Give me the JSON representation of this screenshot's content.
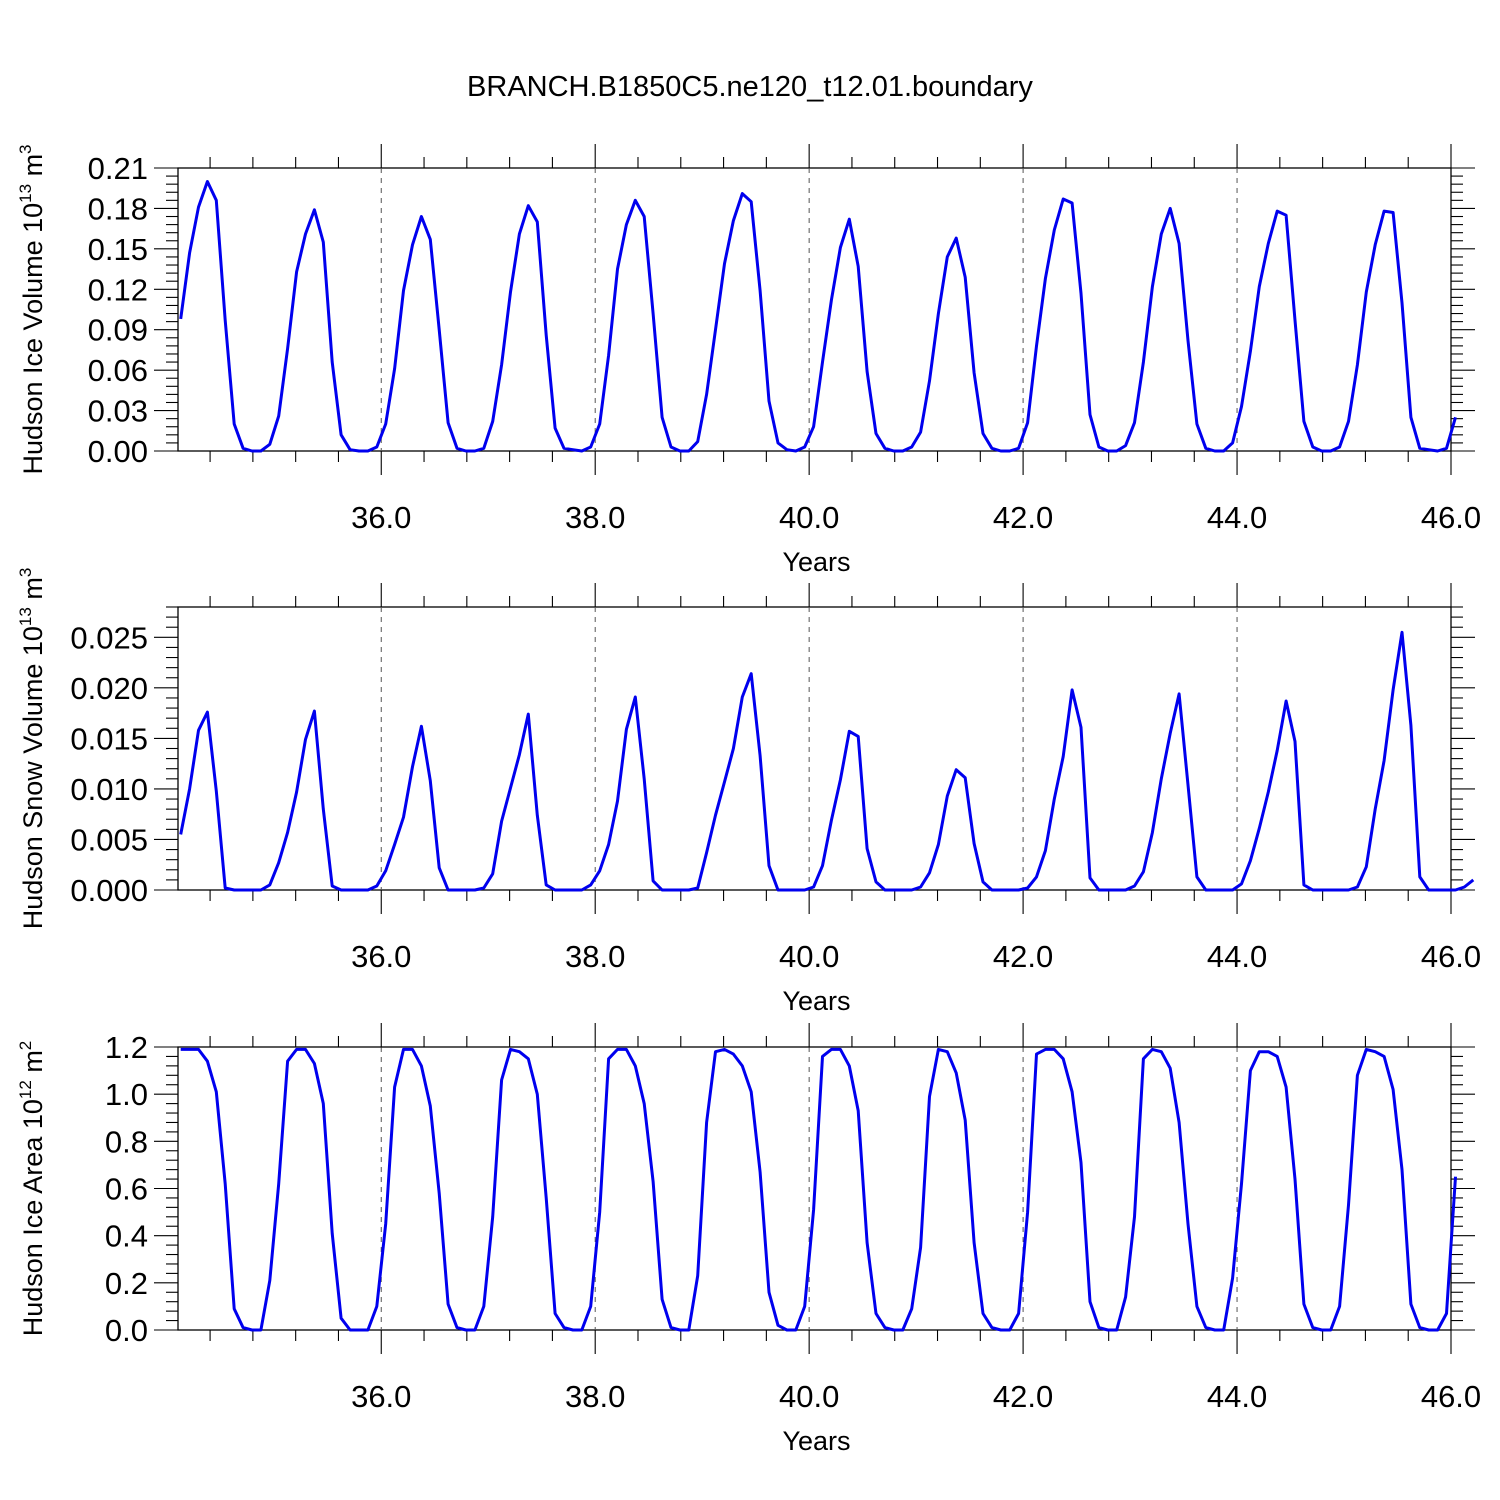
{
  "title": "BRANCH.B1850C5.ne120_t12.01.boundary",
  "line_color": "#0000ee",
  "chart_data": [
    {
      "type": "line",
      "xlabel": "Years",
      "ylabel": "Hudson Ice Volume 10",
      "ylabel_exp": "13",
      "ylabel_unit": " m",
      "ylabel_unit_exp": "3",
      "xlim": [
        34.1,
        46.0
      ],
      "ylim": [
        0.0,
        0.21
      ],
      "ref_line": null,
      "xticks": [
        "36.0",
        "38.0",
        "40.0",
        "42.0",
        "44.0",
        "46.0"
      ],
      "yticks": [
        "0.00",
        "0.03",
        "0.06",
        "0.09",
        "0.12",
        "0.15",
        "0.18",
        "0.21"
      ],
      "series": [
        {
          "x0": 34.125,
          "dx": 0.0833333,
          "values": [
            0.098,
            0.147,
            0.181,
            0.2,
            0.186,
            0.097,
            0.02,
            0.002,
            0.0,
            0.0,
            0.005,
            0.026,
            0.076,
            0.133,
            0.161,
            0.179,
            0.155,
            0.066,
            0.012,
            0.001,
            0.0,
            0.0,
            0.003,
            0.02,
            0.061,
            0.119,
            0.153,
            0.174,
            0.157,
            0.09,
            0.021,
            0.002,
            0.0,
            0.0,
            0.002,
            0.022,
            0.064,
            0.118,
            0.161,
            0.182,
            0.17,
            0.086,
            0.017,
            0.002,
            0.001,
            0.0,
            0.003,
            0.02,
            0.071,
            0.135,
            0.168,
            0.186,
            0.174,
            0.102,
            0.025,
            0.003,
            0.0,
            0.0,
            0.007,
            0.042,
            0.09,
            0.139,
            0.171,
            0.191,
            0.185,
            0.119,
            0.037,
            0.006,
            0.001,
            0.0,
            0.003,
            0.018,
            0.066,
            0.112,
            0.151,
            0.172,
            0.137,
            0.059,
            0.013,
            0.002,
            0.0,
            0.0,
            0.003,
            0.014,
            0.052,
            0.102,
            0.144,
            0.158,
            0.129,
            0.058,
            0.013,
            0.002,
            0.0,
            0.0,
            0.002,
            0.021,
            0.078,
            0.128,
            0.164,
            0.187,
            0.184,
            0.117,
            0.027,
            0.003,
            0.0,
            0.0,
            0.004,
            0.021,
            0.066,
            0.122,
            0.161,
            0.18,
            0.154,
            0.082,
            0.02,
            0.002,
            0.0,
            0.0,
            0.006,
            0.033,
            0.074,
            0.122,
            0.154,
            0.178,
            0.175,
            0.097,
            0.022,
            0.003,
            0.0,
            0.0,
            0.003,
            0.022,
            0.064,
            0.118,
            0.153,
            0.178,
            0.177,
            0.11,
            0.025,
            0.002,
            0.001,
            0.0,
            0.002,
            0.025
          ]
        }
      ]
    },
    {
      "type": "line",
      "xlabel": "Years",
      "ylabel": "Hudson Snow Volume 10",
      "ylabel_exp": "13",
      "ylabel_unit": " m",
      "ylabel_unit_exp": "3",
      "xlim": [
        34.1,
        46.0
      ],
      "ylim": [
        0.0,
        0.028
      ],
      "ref_line": null,
      "xticks": [
        "36.0",
        "38.0",
        "40.0",
        "42.0",
        "44.0",
        "46.0"
      ],
      "yticks": [
        "0.000",
        "0.005",
        "0.010",
        "0.015",
        "0.020",
        "0.025"
      ],
      "series": [
        {
          "x0": 34.125,
          "dx": 0.0833333,
          "values": [
            0.0055,
            0.01,
            0.0158,
            0.0176,
            0.0098,
            0.0002,
            0.0,
            0.0,
            0.0,
            0.0,
            0.0005,
            0.0027,
            0.0057,
            0.0097,
            0.0149,
            0.0177,
            0.008,
            0.0004,
            0.0,
            0.0,
            0.0,
            0.0,
            0.0004,
            0.0019,
            0.0045,
            0.0072,
            0.0122,
            0.0162,
            0.0108,
            0.0022,
            0.0,
            0.0,
            0.0,
            0.0,
            0.0002,
            0.0016,
            0.0068,
            0.0101,
            0.0134,
            0.0174,
            0.0074,
            0.0005,
            0.0,
            0.0,
            0.0,
            0.0,
            0.0005,
            0.0019,
            0.0045,
            0.0088,
            0.0159,
            0.0191,
            0.011,
            0.0009,
            0.0,
            0.0,
            0.0,
            0.0,
            0.0002,
            0.0037,
            0.0074,
            0.0107,
            0.014,
            0.0191,
            0.0214,
            0.0133,
            0.0024,
            0.0,
            0.0,
            0.0,
            0.0,
            0.0003,
            0.0024,
            0.0069,
            0.0109,
            0.0157,
            0.0152,
            0.0041,
            0.0008,
            0.0,
            0.0,
            0.0,
            0.0,
            0.0003,
            0.0017,
            0.0045,
            0.0093,
            0.0119,
            0.0111,
            0.0046,
            0.0008,
            0.0,
            0.0,
            0.0,
            0.0,
            0.0002,
            0.0013,
            0.0039,
            0.009,
            0.0132,
            0.0198,
            0.0161,
            0.0012,
            0.0,
            0.0,
            0.0,
            0.0,
            0.0004,
            0.0018,
            0.0057,
            0.011,
            0.0155,
            0.0194,
            0.0104,
            0.0013,
            0.0,
            0.0,
            0.0,
            0.0,
            0.0006,
            0.0029,
            0.0061,
            0.0097,
            0.0138,
            0.0187,
            0.0147,
            0.0005,
            0.0,
            0.0,
            0.0,
            0.0,
            0.0,
            0.0003,
            0.0023,
            0.008,
            0.0128,
            0.0198,
            0.0255,
            0.0163,
            0.0013,
            0.0,
            0.0,
            0.0,
            0.0,
            0.0003,
            0.001
          ]
        }
      ]
    },
    {
      "type": "line",
      "xlabel": "Years",
      "ylabel": "Hudson Ice Area 10",
      "ylabel_exp": "12",
      "ylabel_unit": " m",
      "ylabel_unit_exp": "2",
      "xlim": [
        34.1,
        46.0
      ],
      "ylim": [
        0.0,
        1.2
      ],
      "ref_line": 1.2,
      "xticks": [
        "36.0",
        "38.0",
        "40.0",
        "42.0",
        "44.0",
        "46.0"
      ],
      "yticks": [
        "0.0",
        "0.2",
        "0.4",
        "0.6",
        "0.8",
        "1.0",
        "1.2"
      ],
      "series": [
        {
          "x0": 34.125,
          "dx": 0.0833333,
          "values": [
            1.19,
            1.19,
            1.19,
            1.14,
            1.01,
            0.62,
            0.09,
            0.01,
            0.0,
            0.0,
            0.21,
            0.62,
            1.14,
            1.19,
            1.19,
            1.13,
            0.96,
            0.41,
            0.05,
            0.0,
            0.0,
            0.0,
            0.1,
            0.45,
            1.03,
            1.19,
            1.19,
            1.12,
            0.95,
            0.58,
            0.11,
            0.01,
            0.0,
            0.0,
            0.1,
            0.48,
            1.06,
            1.19,
            1.18,
            1.15,
            1.0,
            0.56,
            0.07,
            0.01,
            0.0,
            0.0,
            0.1,
            0.5,
            1.15,
            1.19,
            1.19,
            1.12,
            0.96,
            0.63,
            0.13,
            0.01,
            0.0,
            0.0,
            0.23,
            0.88,
            1.18,
            1.19,
            1.17,
            1.12,
            1.01,
            0.67,
            0.16,
            0.02,
            0.0,
            0.0,
            0.1,
            0.51,
            1.16,
            1.19,
            1.19,
            1.12,
            0.93,
            0.37,
            0.07,
            0.01,
            0.0,
            0.0,
            0.09,
            0.35,
            0.99,
            1.19,
            1.18,
            1.09,
            0.89,
            0.37,
            0.07,
            0.01,
            0.0,
            0.0,
            0.07,
            0.5,
            1.17,
            1.19,
            1.19,
            1.15,
            1.01,
            0.71,
            0.12,
            0.01,
            0.0,
            0.0,
            0.14,
            0.48,
            1.15,
            1.19,
            1.18,
            1.11,
            0.88,
            0.45,
            0.1,
            0.01,
            0.0,
            0.0,
            0.22,
            0.62,
            1.1,
            1.18,
            1.18,
            1.16,
            1.03,
            0.64,
            0.11,
            0.01,
            0.0,
            0.0,
            0.1,
            0.53,
            1.08,
            1.19,
            1.18,
            1.16,
            1.02,
            0.68,
            0.11,
            0.01,
            0.0,
            0.0,
            0.07,
            0.65
          ]
        }
      ]
    }
  ]
}
